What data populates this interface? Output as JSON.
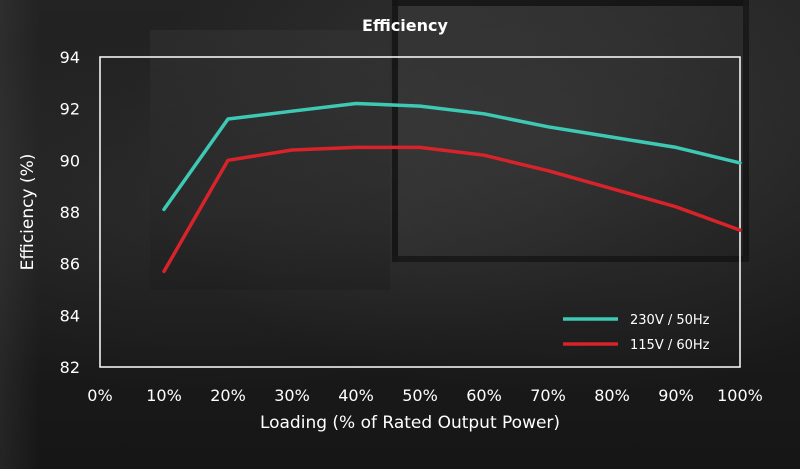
{
  "chart_data": {
    "type": "line",
    "title": "Efficiency",
    "xlabel": "Loading (% of Rated Output Power)",
    "ylabel": "Efficiency (%)",
    "x_ticks": [
      "0%",
      "10%",
      "20%",
      "30%",
      "40%",
      "50%",
      "60%",
      "70%",
      "80%",
      "90%",
      "100%"
    ],
    "y_ticks": [
      "82",
      "84",
      "86",
      "88",
      "90",
      "92",
      "94"
    ],
    "xlim": [
      0,
      100
    ],
    "ylim": [
      82,
      94
    ],
    "grid": false,
    "legend_position": "bottom-right",
    "series": [
      {
        "name": "230V / 50Hz",
        "color": "#3ec9b5",
        "x": [
          10,
          20,
          30,
          40,
          50,
          60,
          70,
          80,
          90,
          100
        ],
        "y": [
          88.1,
          91.6,
          91.9,
          92.2,
          92.1,
          91.8,
          91.3,
          90.9,
          90.5,
          89.9
        ]
      },
      {
        "name": "115V / 60Hz",
        "color": "#d8232a",
        "x": [
          10,
          20,
          30,
          40,
          50,
          60,
          70,
          80,
          90,
          100
        ],
        "y": [
          85.7,
          90.0,
          90.4,
          90.5,
          90.5,
          90.2,
          89.6,
          88.9,
          88.2,
          87.3
        ]
      }
    ]
  }
}
